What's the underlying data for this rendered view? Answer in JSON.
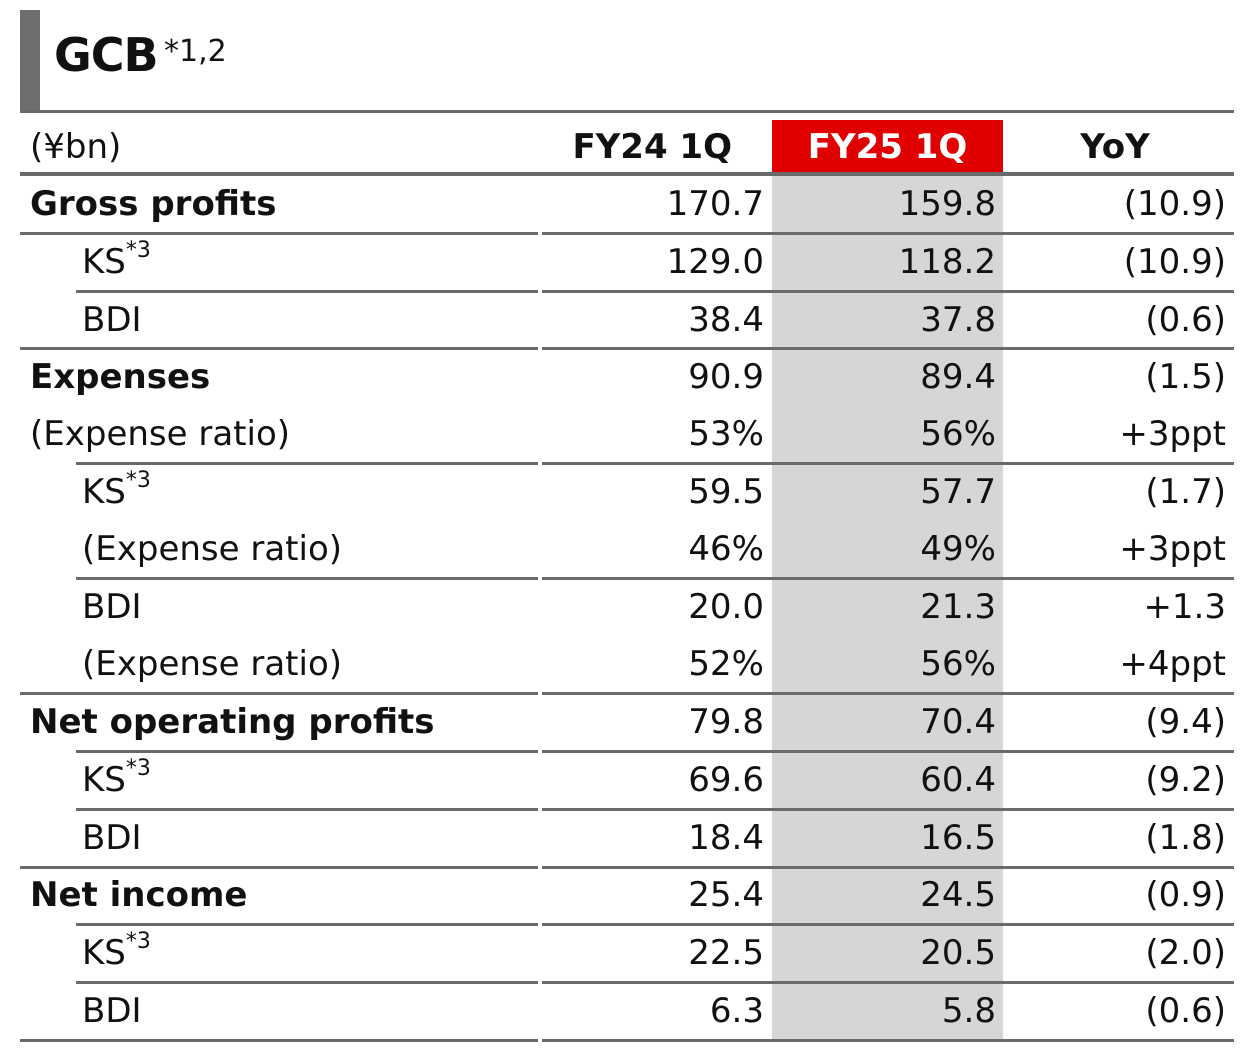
{
  "title": {
    "text": "GCB",
    "superscript": "*1,2"
  },
  "table": {
    "unit": "(¥bn)",
    "headers": [
      "FY24 1Q",
      "FY25 1Q",
      "YoY"
    ],
    "rows": [
      {
        "label": "Gross profits",
        "sup": "",
        "fy24": "170.7",
        "fy25": "159.8",
        "yoy": "(10.9)"
      },
      {
        "label": "KS",
        "sup": "*3",
        "fy24": "129.0",
        "fy25": "118.2",
        "yoy": "(10.9)"
      },
      {
        "label": "BDI",
        "sup": "",
        "fy24": "38.4",
        "fy25": "37.8",
        "yoy": "(0.6)"
      },
      {
        "label": "Expenses",
        "sup": "",
        "fy24": "90.9",
        "fy25": "89.4",
        "yoy": "(1.5)"
      },
      {
        "label": "(Expense ratio)",
        "sup": "",
        "fy24": "53%",
        "fy25": "56%",
        "yoy": "+3ppt"
      },
      {
        "label": "KS",
        "sup": "*3",
        "fy24": "59.5",
        "fy25": "57.7",
        "yoy": "(1.7)"
      },
      {
        "label": "(Expense ratio)",
        "sup": "",
        "fy24": "46%",
        "fy25": "49%",
        "yoy": "+3ppt"
      },
      {
        "label": "BDI",
        "sup": "",
        "fy24": "20.0",
        "fy25": "21.3",
        "yoy": "+1.3"
      },
      {
        "label": "(Expense ratio)",
        "sup": "",
        "fy24": "52%",
        "fy25": "56%",
        "yoy": "+4ppt"
      },
      {
        "label": "Net operating profits",
        "sup": "",
        "fy24": "79.8",
        "fy25": "70.4",
        "yoy": "(9.4)"
      },
      {
        "label": "KS",
        "sup": "*3",
        "fy24": "69.6",
        "fy25": "60.4",
        "yoy": "(9.2)"
      },
      {
        "label": "BDI",
        "sup": "",
        "fy24": "18.4",
        "fy25": "16.5",
        "yoy": "(1.8)"
      },
      {
        "label": "Net income",
        "sup": "",
        "fy24": "25.4",
        "fy25": "24.5",
        "yoy": "(0.9)"
      },
      {
        "label": "KS",
        "sup": "*3",
        "fy24": "22.5",
        "fy25": "20.5",
        "yoy": "(2.0)"
      },
      {
        "label": "BDI",
        "sup": "",
        "fy24": "6.3",
        "fy25": "5.8",
        "yoy": "(0.6)"
      }
    ]
  }
}
